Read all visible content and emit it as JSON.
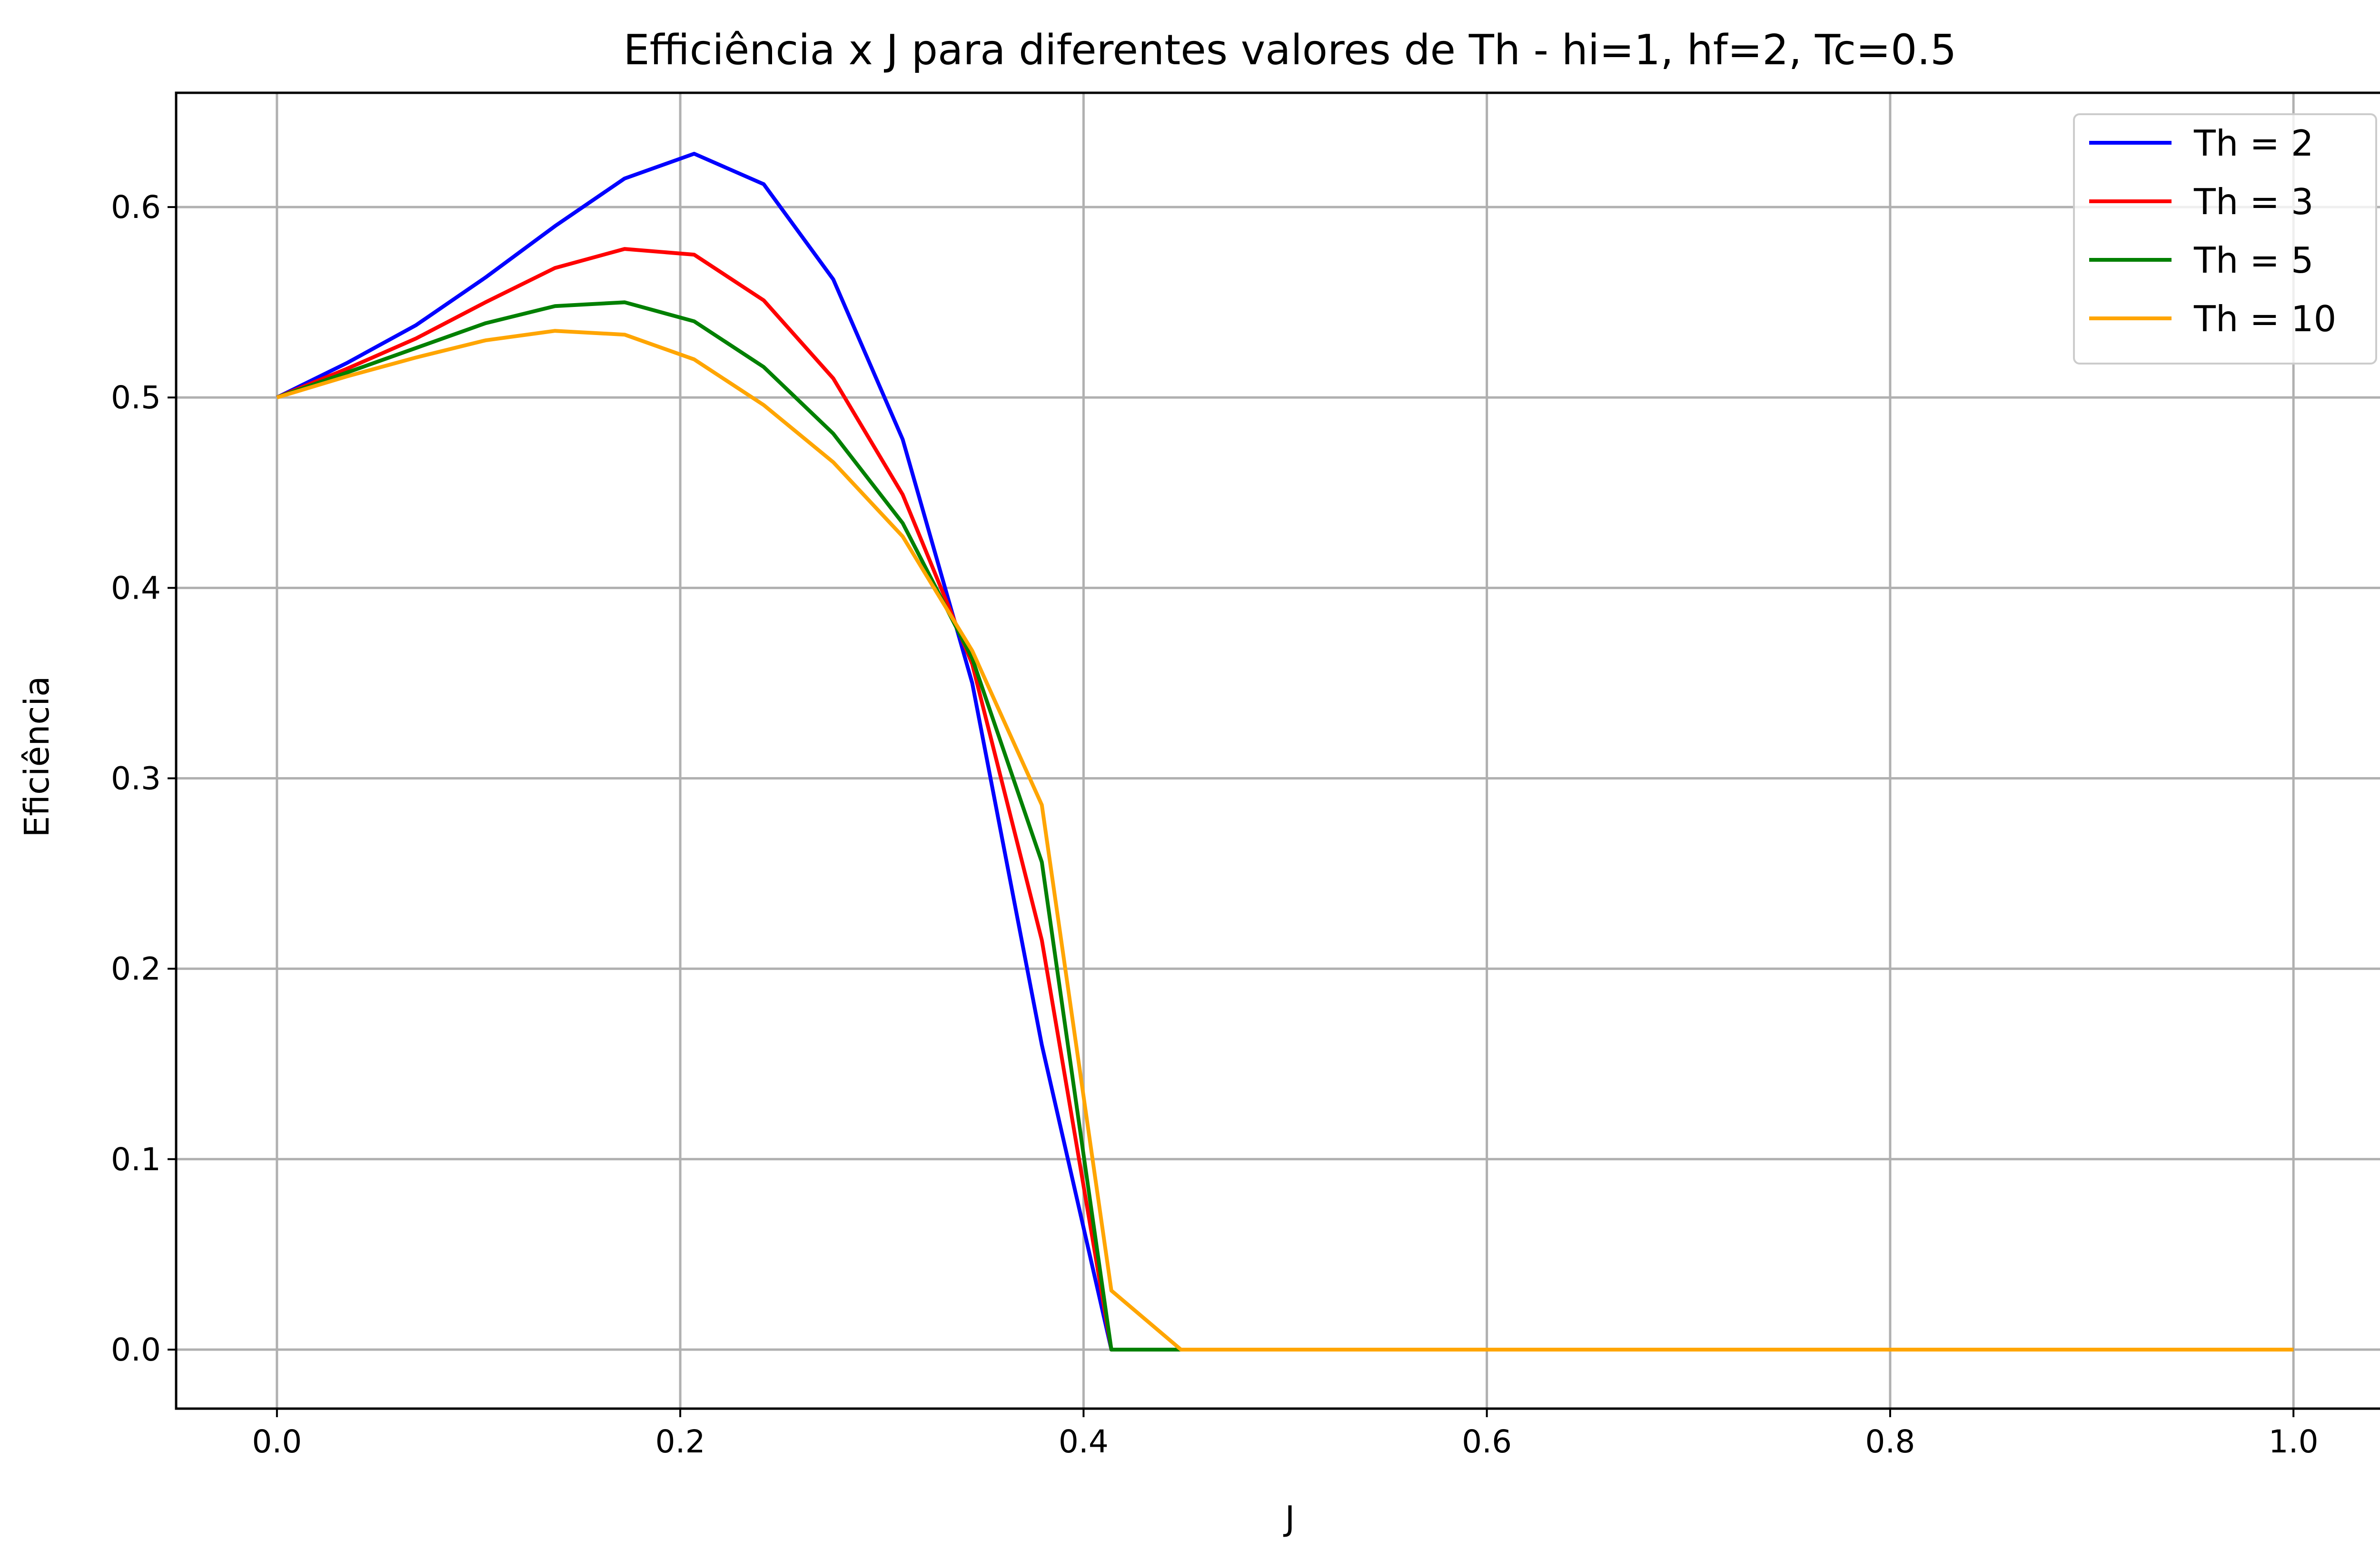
{
  "chart_data": {
    "type": "line",
    "title": "Efficiência x J para diferentes valores de Th - hi=1, hf=2, Tc=0.5",
    "xlabel": "J",
    "ylabel": "Eficiência",
    "xlim": [
      -0.05,
      1.05
    ],
    "ylim": [
      -0.031,
      0.66
    ],
    "xticks": [
      0.0,
      0.2,
      0.4,
      0.6,
      0.8,
      1.0
    ],
    "xtick_labels": [
      "0.0",
      "0.2",
      "0.4",
      "0.6",
      "0.8",
      "1.0"
    ],
    "yticks": [
      0.0,
      0.1,
      0.2,
      0.3,
      0.4,
      0.5,
      0.6
    ],
    "ytick_labels": [
      "0.0",
      "0.1",
      "0.2",
      "0.3",
      "0.4",
      "0.5",
      "0.6"
    ],
    "grid": true,
    "legend_position": "top-right",
    "series": [
      {
        "name": "Th = 2",
        "color": "#0000ff",
        "x": [
          0.0,
          0.0345,
          0.069,
          0.1034,
          0.1379,
          0.1724,
          0.2069,
          0.2414,
          0.2759,
          0.3103,
          0.3448,
          0.3793,
          0.4138,
          0.4483,
          0.5,
          0.6,
          0.7,
          0.8,
          0.9,
          1.0
        ],
        "y": [
          0.5,
          0.518,
          0.538,
          0.563,
          0.59,
          0.615,
          0.628,
          0.612,
          0.562,
          0.478,
          0.35,
          0.16,
          0.0,
          0.0,
          0.0,
          0.0,
          0.0,
          0.0,
          0.0,
          0.0
        ]
      },
      {
        "name": "Th = 3",
        "color": "#ff0000",
        "x": [
          0.0,
          0.0345,
          0.069,
          0.1034,
          0.1379,
          0.1724,
          0.2069,
          0.2414,
          0.2759,
          0.3103,
          0.3448,
          0.3793,
          0.4138,
          0.4483,
          0.5,
          0.6,
          0.7,
          0.8,
          0.9,
          1.0
        ],
        "y": [
          0.5,
          0.515,
          0.531,
          0.55,
          0.568,
          0.578,
          0.575,
          0.551,
          0.51,
          0.449,
          0.36,
          0.215,
          0.0,
          0.0,
          0.0,
          0.0,
          0.0,
          0.0,
          0.0,
          0.0
        ]
      },
      {
        "name": "Th = 5",
        "color": "#008000",
        "x": [
          0.0,
          0.0345,
          0.069,
          0.1034,
          0.1379,
          0.1724,
          0.2069,
          0.2414,
          0.2759,
          0.3103,
          0.3448,
          0.3793,
          0.4138,
          0.4483,
          0.5,
          0.6,
          0.7,
          0.8,
          0.9,
          1.0
        ],
        "y": [
          0.5,
          0.513,
          0.526,
          0.539,
          0.548,
          0.55,
          0.54,
          0.516,
          0.481,
          0.434,
          0.363,
          0.256,
          0.0,
          0.0,
          0.0,
          0.0,
          0.0,
          0.0,
          0.0,
          0.0
        ]
      },
      {
        "name": "Th = 10",
        "color": "#ffa500",
        "x": [
          0.0,
          0.0345,
          0.069,
          0.1034,
          0.1379,
          0.1724,
          0.2069,
          0.2414,
          0.2759,
          0.3103,
          0.3448,
          0.3793,
          0.4138,
          0.4483,
          0.5,
          0.6,
          0.7,
          0.8,
          0.9,
          1.0
        ],
        "y": [
          0.5,
          0.511,
          0.521,
          0.53,
          0.535,
          0.533,
          0.52,
          0.496,
          0.466,
          0.427,
          0.367,
          0.286,
          0.031,
          0.0,
          0.0,
          0.0,
          0.0,
          0.0,
          0.0,
          0.0
        ]
      }
    ]
  }
}
